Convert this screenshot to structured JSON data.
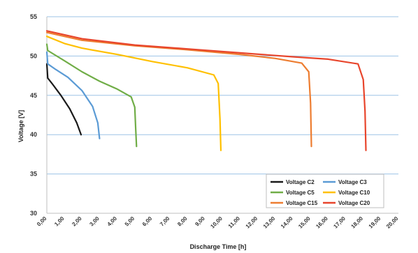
{
  "chart_data": {
    "type": "line",
    "title": "",
    "xlabel": "Discharge Time [h]",
    "ylabel": "Voltage [V]",
    "xlim": [
      0,
      20
    ],
    "ylim": [
      30,
      55
    ],
    "grid": "horizontal",
    "legend_position": "bottom-right",
    "y_ticks": [
      "30",
      "35",
      "40",
      "45",
      "50",
      "55"
    ],
    "x_ticks": [
      "0,00",
      "1,00",
      "2,00",
      "3,00",
      "4,00",
      "5,00",
      "6,00",
      "7,00",
      "8,00",
      "9,00",
      "10,00",
      "11,00",
      "12,00",
      "13,00",
      "14,00",
      "15,00",
      "16,00",
      "17,00",
      "18,00",
      "19,00",
      "20,00"
    ],
    "series": [
      {
        "name": "Voltage C2",
        "color": "#1a1a1a",
        "points": [
          [
            0,
            49.0
          ],
          [
            0.05,
            47.2
          ],
          [
            0.3,
            46.5
          ],
          [
            0.8,
            45.0
          ],
          [
            1.3,
            43.3
          ],
          [
            1.7,
            41.5
          ],
          [
            1.95,
            40.0
          ]
        ]
      },
      {
        "name": "Voltage C3",
        "color": "#5b9bd5",
        "points": [
          [
            0,
            50.5
          ],
          [
            0.05,
            49.0
          ],
          [
            0.5,
            48.3
          ],
          [
            1.2,
            47.3
          ],
          [
            2.0,
            45.6
          ],
          [
            2.6,
            43.6
          ],
          [
            2.9,
            41.5
          ],
          [
            3.0,
            39.5
          ]
        ]
      },
      {
        "name": "Voltage C5",
        "color": "#70ad47",
        "points": [
          [
            0,
            51.5
          ],
          [
            0.05,
            50.7
          ],
          [
            1.0,
            49.4
          ],
          [
            2.0,
            48.0
          ],
          [
            3.0,
            46.8
          ],
          [
            4.0,
            45.8
          ],
          [
            4.8,
            44.8
          ],
          [
            5.0,
            43.5
          ],
          [
            5.05,
            41.0
          ],
          [
            5.1,
            38.5
          ]
        ]
      },
      {
        "name": "Voltage C10",
        "color": "#ffc000",
        "points": [
          [
            0,
            52.5
          ],
          [
            1.0,
            51.6
          ],
          [
            2.0,
            51.0
          ],
          [
            4.0,
            50.2
          ],
          [
            6.0,
            49.3
          ],
          [
            8.0,
            48.5
          ],
          [
            9.5,
            47.6
          ],
          [
            9.75,
            46.5
          ],
          [
            9.85,
            42.0
          ],
          [
            9.9,
            38.0
          ]
        ]
      },
      {
        "name": "Voltage C15",
        "color": "#ed7d31",
        "points": [
          [
            0,
            53.0
          ],
          [
            2.0,
            52.0
          ],
          [
            5.0,
            51.3
          ],
          [
            8.0,
            50.8
          ],
          [
            11.0,
            50.2
          ],
          [
            13.0,
            49.7
          ],
          [
            14.5,
            49.1
          ],
          [
            14.9,
            48.0
          ],
          [
            15.0,
            44.0
          ],
          [
            15.05,
            38.5
          ]
        ]
      },
      {
        "name": "Voltage C20",
        "color": "#e8452c",
        "points": [
          [
            0,
            53.2
          ],
          [
            2.0,
            52.2
          ],
          [
            5.0,
            51.4
          ],
          [
            8.0,
            50.9
          ],
          [
            11.0,
            50.4
          ],
          [
            14.0,
            49.9
          ],
          [
            16.0,
            49.6
          ],
          [
            17.7,
            49.0
          ],
          [
            18.0,
            47.0
          ],
          [
            18.1,
            43.0
          ],
          [
            18.15,
            38.0
          ]
        ]
      }
    ]
  }
}
